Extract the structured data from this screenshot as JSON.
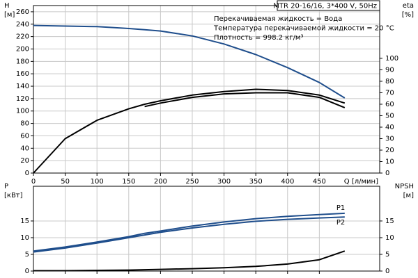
{
  "chart_data": [
    {
      "type": "line",
      "title": "MTR 20-16/16, 3*400 V, 50Hz",
      "annotations": [
        "Перекачиваемая жидкость = Вода",
        "Температура перекачиваемой жидкости = 20 °C",
        "Плотность = 998.2 кг/м³"
      ],
      "ylabel": [
        "H",
        "[м]"
      ],
      "y2label": [
        "eta",
        "[%]"
      ],
      "xlabel": "Q [л/мин]",
      "x": [
        0,
        50,
        100,
        150,
        175,
        200,
        250,
        300,
        350,
        400,
        450,
        490
      ],
      "series": [
        {
          "color": "#1f4e8c",
          "values": [
            238,
            237,
            236,
            233,
            231,
            229,
            221,
            208,
            191,
            170,
            146,
            121
          ]
        },
        {
          "color": "#000000",
          "axis": "y2",
          "values": [
            0,
            30,
            46,
            56,
            60,
            63,
            68,
            71,
            73,
            72,
            68,
            61
          ]
        },
        {
          "color": "#000000",
          "axis": "y2",
          "values": [
            null,
            null,
            null,
            null,
            58,
            61,
            66,
            69,
            70,
            70,
            66,
            57
          ]
        }
      ],
      "xlim": [
        0,
        545
      ],
      "xticks": [
        0,
        50,
        100,
        150,
        200,
        250,
        300,
        350,
        400,
        450
      ],
      "ylim": [
        0,
        270
      ],
      "yticks": [
        0,
        20,
        40,
        60,
        80,
        100,
        120,
        140,
        160,
        180,
        200,
        220,
        240,
        260
      ],
      "y2lim": [
        0,
        146
      ],
      "y2ticks": [
        0,
        10,
        20,
        30,
        40,
        50,
        60,
        70,
        80,
        90,
        100
      ],
      "grid": true
    },
    {
      "type": "line",
      "ylabel": [
        "P",
        "[кВт]"
      ],
      "y2label": [
        "NPSH",
        "[м]"
      ],
      "x": [
        0,
        50,
        100,
        150,
        175,
        200,
        250,
        300,
        350,
        400,
        450,
        490
      ],
      "series": [
        {
          "name": "P1",
          "color": "#1f4e8c",
          "values": [
            6,
            7.2,
            8.7,
            10.3,
            11.3,
            12,
            13.5,
            14.7,
            15.7,
            16.4,
            16.9,
            17.3
          ]
        },
        {
          "name": "P2",
          "color": "#1f4e8c",
          "values": [
            5.7,
            6.9,
            8.4,
            10,
            10.8,
            11.6,
            12.9,
            14,
            14.9,
            15.5,
            15.9,
            16.2
          ]
        },
        {
          "color": "#000000",
          "axis": "y2",
          "values": [
            0.1,
            0.1,
            0.2,
            0.3,
            0.4,
            0.5,
            0.7,
            1,
            1.4,
            2.1,
            3.4,
            6
          ]
        }
      ],
      "xlim": [
        0,
        545
      ],
      "xticks": [
        0,
        50,
        100,
        150,
        200,
        250,
        300,
        350,
        400,
        450
      ],
      "ylim": [
        0,
        25.4
      ],
      "yticks": [
        0,
        5,
        10,
        15
      ],
      "y2lim": [
        0,
        25.4
      ],
      "y2ticks": [
        0,
        5,
        10,
        15
      ],
      "grid": true
    }
  ]
}
